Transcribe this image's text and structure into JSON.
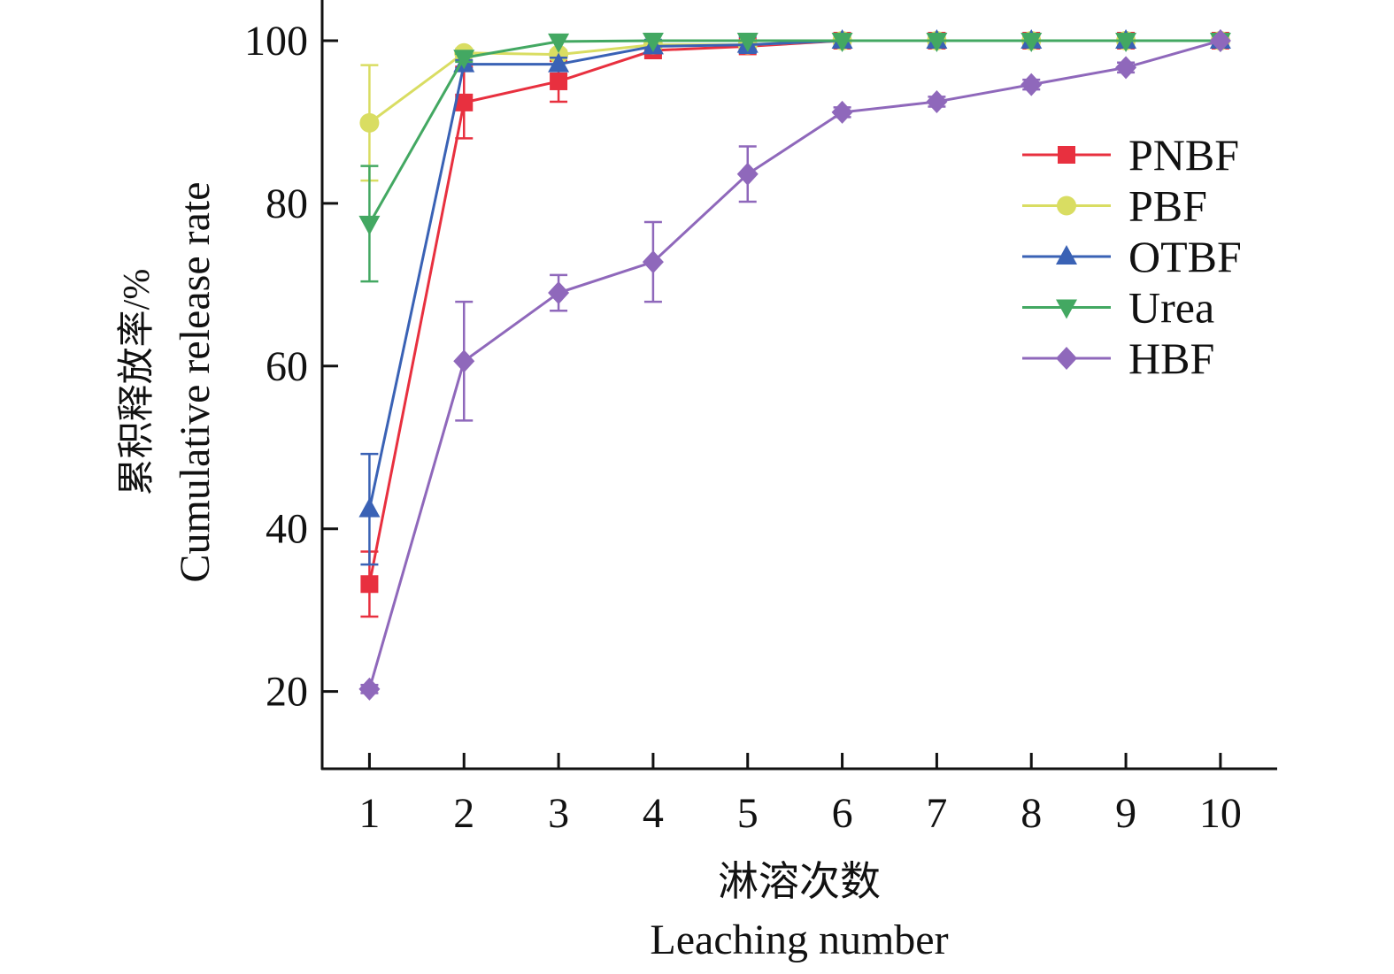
{
  "chart_data": {
    "type": "line",
    "xlabel_cn": "淋溶次数",
    "xlabel": "Leaching number",
    "ylabel_cn": "累积释放率/%",
    "ylabel": "Cumulative release rate",
    "x": [
      1,
      2,
      3,
      4,
      5,
      6,
      7,
      8,
      9,
      10
    ],
    "xticks": [
      "1",
      "2",
      "3",
      "4",
      "5",
      "6",
      "7",
      "8",
      "9",
      "10"
    ],
    "yticks": [
      20,
      40,
      60,
      80,
      100
    ],
    "xlim": [
      0.5,
      10.6
    ],
    "ylim": [
      10.5,
      105
    ],
    "grid": false,
    "legend_position": "top-right",
    "series": [
      {
        "name": "PNBF",
        "color": "#e8303f",
        "marker": "square",
        "values": [
          33.2,
          92.4,
          95.0,
          98.8,
          99.3,
          100,
          100,
          100,
          100,
          100
        ],
        "errors": [
          4.0,
          4.4,
          2.5,
          0.5,
          0.4,
          0,
          0,
          0,
          0,
          0
        ]
      },
      {
        "name": "PBF",
        "color": "#d9dd62",
        "marker": "circle",
        "values": [
          89.9,
          98.5,
          98.3,
          99.5,
          99.5,
          100,
          100,
          100,
          100,
          100
        ],
        "errors": [
          7.1,
          0.5,
          0.5,
          0.3,
          0.3,
          0,
          0,
          0,
          0,
          0
        ]
      },
      {
        "name": "OTBF",
        "color": "#3a62b5",
        "marker": "triangle-up",
        "values": [
          42.4,
          97.1,
          97.1,
          99.3,
          99.5,
          100,
          100,
          100,
          100,
          100
        ],
        "errors": [
          6.8,
          0.5,
          0.8,
          0.8,
          1.0,
          0,
          0,
          0,
          0,
          0
        ]
      },
      {
        "name": "Urea",
        "color": "#43a862",
        "marker": "triangle-down",
        "values": [
          77.5,
          97.9,
          99.9,
          100,
          100,
          100,
          100,
          100,
          100,
          100
        ],
        "errors": [
          7.1,
          0.5,
          0.3,
          0,
          0,
          0,
          0,
          0,
          0,
          0
        ]
      },
      {
        "name": "HBF",
        "color": "#8f68bb",
        "marker": "diamond",
        "values": [
          20.3,
          60.6,
          69.0,
          72.8,
          83.6,
          91.2,
          92.5,
          94.6,
          96.7,
          100
        ],
        "errors": [
          0.5,
          7.3,
          2.2,
          4.9,
          3.4,
          0.6,
          0.6,
          0.6,
          0.6,
          0
        ]
      }
    ]
  }
}
